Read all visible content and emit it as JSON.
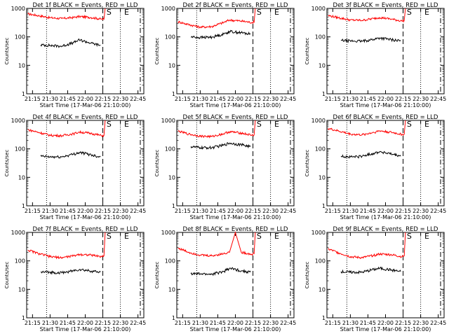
{
  "page": {
    "xlabel": "Start Time (17-Mar-06 21:10:00)",
    "ylabel": "Counts/sec",
    "x_ticks": [
      "21:15",
      "21:30",
      "21:45",
      "22:00",
      "22:15",
      "22:30",
      "22:45"
    ],
    "y_ticks": [
      "1",
      "10",
      "100",
      "1000"
    ]
  },
  "chart_data": [
    {
      "type": "line",
      "title": "Det 1f BLACK = Events, RED = LLD",
      "xlabel": "Start Time (17-Mar-06 21:10:00)",
      "ylabel": "Counts/sec",
      "y_scale": "log",
      "ylim": [
        1,
        1000
      ],
      "x_ticks": [
        "21:15",
        "21:30",
        "21:45",
        "22:00",
        "22:15",
        "22:30",
        "22:45"
      ],
      "markers": {
        "S": "22:17",
        "E": "22:32"
      },
      "series": [
        {
          "name": "LLD",
          "color": "#ff0000",
          "x": [
            "21:11",
            "21:20",
            "21:30",
            "21:40",
            "21:50",
            "21:55",
            "22:05",
            "22:14",
            "22:16",
            "22:17"
          ],
          "y": [
            640,
            560,
            470,
            440,
            480,
            520,
            480,
            420,
            420,
            1000
          ]
        },
        {
          "name": "Events",
          "color": "#000000",
          "x": [
            "21:22",
            "21:30",
            "21:40",
            "21:50",
            "21:55",
            "22:05",
            "22:13"
          ],
          "y": [
            52,
            50,
            47,
            62,
            78,
            60,
            50
          ]
        }
      ]
    },
    {
      "type": "line",
      "title": "Det 2f BLACK = Events, RED = LLD",
      "xlabel": "Start Time (17-Mar-06 21:10:00)",
      "ylabel": "Counts/sec",
      "y_scale": "log",
      "ylim": [
        1,
        1000
      ],
      "x_ticks": [
        "21:15",
        "21:30",
        "21:45",
        "22:00",
        "22:15",
        "22:30",
        "22:45"
      ],
      "markers": {
        "S": "22:17",
        "E": "22:32"
      },
      "series": [
        {
          "name": "LLD",
          "color": "#ff0000",
          "x": [
            "21:11",
            "21:20",
            "21:30",
            "21:40",
            "21:50",
            "21:55",
            "22:05",
            "22:14",
            "22:16",
            "22:17"
          ],
          "y": [
            340,
            270,
            220,
            230,
            320,
            390,
            360,
            320,
            330,
            1000
          ]
        },
        {
          "name": "Events",
          "color": "#000000",
          "x": [
            "21:22",
            "21:30",
            "21:40",
            "21:50",
            "21:55",
            "22:05",
            "22:13"
          ],
          "y": [
            100,
            95,
            98,
            125,
            155,
            140,
            125
          ]
        }
      ]
    },
    {
      "type": "line",
      "title": "Det 3f BLACK = Events, RED = LLD",
      "xlabel": "Start Time (17-Mar-06 21:10:00)",
      "ylabel": "Counts/sec",
      "y_scale": "log",
      "ylim": [
        1,
        1000
      ],
      "x_ticks": [
        "21:15",
        "21:30",
        "21:45",
        "22:00",
        "22:15",
        "22:30",
        "22:45"
      ],
      "markers": {
        "S": "22:17",
        "E": "22:32"
      },
      "series": [
        {
          "name": "LLD",
          "color": "#ff0000",
          "x": [
            "21:11",
            "21:20",
            "21:30",
            "21:40",
            "21:50",
            "21:55",
            "22:05",
            "22:14",
            "22:16",
            "22:17"
          ],
          "y": [
            560,
            470,
            390,
            380,
            440,
            480,
            420,
            360,
            380,
            1000
          ]
        },
        {
          "name": "Events",
          "color": "#000000",
          "x": [
            "21:22",
            "21:30",
            "21:40",
            "21:50",
            "21:55",
            "22:05",
            "22:13"
          ],
          "y": [
            75,
            72,
            70,
            82,
            92,
            80,
            72
          ]
        }
      ]
    },
    {
      "type": "line",
      "title": "Det 4f BLACK = Events, RED = LLD",
      "xlabel": "Start Time (17-Mar-06 21:10:00)",
      "ylabel": "Counts/sec",
      "y_scale": "log",
      "ylim": [
        1,
        1000
      ],
      "x_ticks": [
        "21:15",
        "21:30",
        "21:45",
        "22:00",
        "22:15",
        "22:30",
        "22:45"
      ],
      "markers": {
        "S": "22:17",
        "E": "22:32"
      },
      "series": [
        {
          "name": "LLD",
          "color": "#ff0000",
          "x": [
            "21:11",
            "21:20",
            "21:30",
            "21:40",
            "21:50",
            "21:55",
            "22:05",
            "22:14",
            "22:16",
            "22:17"
          ],
          "y": [
            470,
            380,
            300,
            290,
            340,
            390,
            350,
            290,
            300,
            1000
          ]
        },
        {
          "name": "Events",
          "color": "#000000",
          "x": [
            "21:22",
            "21:30",
            "21:40",
            "21:50",
            "21:55",
            "22:05",
            "22:13"
          ],
          "y": [
            55,
            52,
            52,
            65,
            75,
            62,
            52
          ]
        }
      ]
    },
    {
      "type": "line",
      "title": "Det 5f BLACK = Events, RED = LLD",
      "xlabel": "Start Time (17-Mar-06 21:10:00)",
      "ylabel": "Counts/sec",
      "y_scale": "log",
      "ylim": [
        1,
        1000
      ],
      "x_ticks": [
        "21:15",
        "21:30",
        "21:45",
        "22:00",
        "22:15",
        "22:30",
        "22:45"
      ],
      "markers": {
        "S": "22:17",
        "E": "22:32"
      },
      "series": [
        {
          "name": "LLD",
          "color": "#ff0000",
          "x": [
            "21:11",
            "21:20",
            "21:30",
            "21:40",
            "21:50",
            "21:55",
            "22:05",
            "22:14",
            "22:16",
            "22:17"
          ],
          "y": [
            420,
            330,
            280,
            270,
            340,
            400,
            360,
            300,
            310,
            1000
          ]
        },
        {
          "name": "Events",
          "color": "#000000",
          "x": [
            "21:22",
            "21:30",
            "21:40",
            "21:50",
            "21:55",
            "22:05",
            "22:13"
          ],
          "y": [
            120,
            110,
            110,
            135,
            160,
            140,
            120
          ]
        }
      ]
    },
    {
      "type": "line",
      "title": "Det 6f BLACK = Events, RED = LLD",
      "xlabel": "Start Time (17-Mar-06 21:10:00)",
      "ylabel": "Counts/sec",
      "y_scale": "log",
      "ylim": [
        1,
        1000
      ],
      "x_ticks": [
        "21:15",
        "21:30",
        "21:45",
        "22:00",
        "22:15",
        "22:30",
        "22:45"
      ],
      "markers": {
        "S": "22:17",
        "E": "22:32"
      },
      "series": [
        {
          "name": "LLD",
          "color": "#ff0000",
          "x": [
            "21:11",
            "21:20",
            "21:30",
            "21:40",
            "21:50",
            "21:55",
            "22:05",
            "22:14",
            "22:16",
            "22:17"
          ],
          "y": [
            520,
            420,
            330,
            310,
            380,
            430,
            380,
            320,
            330,
            1000
          ]
        },
        {
          "name": "Events",
          "color": "#000000",
          "x": [
            "21:22",
            "21:30",
            "21:40",
            "21:50",
            "21:55",
            "22:05",
            "22:13"
          ],
          "y": [
            55,
            52,
            55,
            70,
            80,
            65,
            55
          ]
        }
      ]
    },
    {
      "type": "line",
      "title": "Det 7f BLACK = Events, RED = LLD",
      "xlabel": "Start Time (17-Mar-06 21:10:00)",
      "ylabel": "Counts/sec",
      "y_scale": "log",
      "ylim": [
        1,
        1000
      ],
      "x_ticks": [
        "21:15",
        "21:30",
        "21:45",
        "22:00",
        "22:15",
        "22:30",
        "22:45"
      ],
      "markers": {
        "S": "22:17",
        "E": "22:32"
      },
      "series": [
        {
          "name": "LLD",
          "color": "#ff0000",
          "x": [
            "21:11",
            "21:20",
            "21:30",
            "21:40",
            "21:50",
            "21:55",
            "22:05",
            "22:14",
            "22:16",
            "22:17"
          ],
          "y": [
            240,
            180,
            140,
            130,
            150,
            170,
            160,
            140,
            150,
            1000
          ]
        },
        {
          "name": "Events",
          "color": "#000000",
          "x": [
            "21:22",
            "21:30",
            "21:40",
            "21:50",
            "21:55",
            "22:05",
            "22:13"
          ],
          "y": [
            40,
            40,
            38,
            45,
            50,
            44,
            40
          ]
        }
      ]
    },
    {
      "type": "line",
      "title": "Det 8f BLACK = Events, RED = LLD",
      "xlabel": "Start Time (17-Mar-06 21:10:00)",
      "ylabel": "Counts/sec",
      "y_scale": "log",
      "ylim": [
        1,
        1000
      ],
      "x_ticks": [
        "21:15",
        "21:30",
        "21:45",
        "22:00",
        "22:15",
        "22:30",
        "22:45"
      ],
      "markers": {
        "S": "22:17",
        "E": "22:32"
      },
      "series": [
        {
          "name": "LLD",
          "color": "#ff0000",
          "x": [
            "21:11",
            "21:20",
            "21:30",
            "21:40",
            "21:50",
            "21:55",
            "22:00",
            "22:05",
            "22:14",
            "22:16",
            "22:17"
          ],
          "y": [
            280,
            200,
            160,
            150,
            180,
            200,
            1000,
            200,
            170,
            180,
            1000
          ]
        },
        {
          "name": "Events",
          "color": "#000000",
          "x": [
            "21:22",
            "21:30",
            "21:40",
            "21:50",
            "21:55",
            "22:05",
            "22:13"
          ],
          "y": [
            35,
            35,
            34,
            42,
            55,
            45,
            40
          ]
        }
      ]
    },
    {
      "type": "line",
      "title": "Det 9f BLACK = Events, RED = LLD",
      "xlabel": "Start Time (17-Mar-06 21:10:00)",
      "ylabel": "Counts/sec",
      "y_scale": "log",
      "ylim": [
        1,
        1000
      ],
      "x_ticks": [
        "21:15",
        "21:30",
        "21:45",
        "22:00",
        "22:15",
        "22:30",
        "22:45"
      ],
      "markers": {
        "S": "22:17",
        "E": "22:32"
      },
      "series": [
        {
          "name": "LLD",
          "color": "#ff0000",
          "x": [
            "21:11",
            "21:20",
            "21:30",
            "21:40",
            "21:50",
            "21:55",
            "22:05",
            "22:14",
            "22:16",
            "22:17"
          ],
          "y": [
            260,
            190,
            140,
            130,
            155,
            175,
            165,
            140,
            150,
            1000
          ]
        },
        {
          "name": "Events",
          "color": "#000000",
          "x": [
            "21:22",
            "21:30",
            "21:40",
            "21:50",
            "21:55",
            "22:05",
            "22:13"
          ],
          "y": [
            42,
            40,
            40,
            50,
            55,
            48,
            42
          ]
        }
      ]
    }
  ]
}
